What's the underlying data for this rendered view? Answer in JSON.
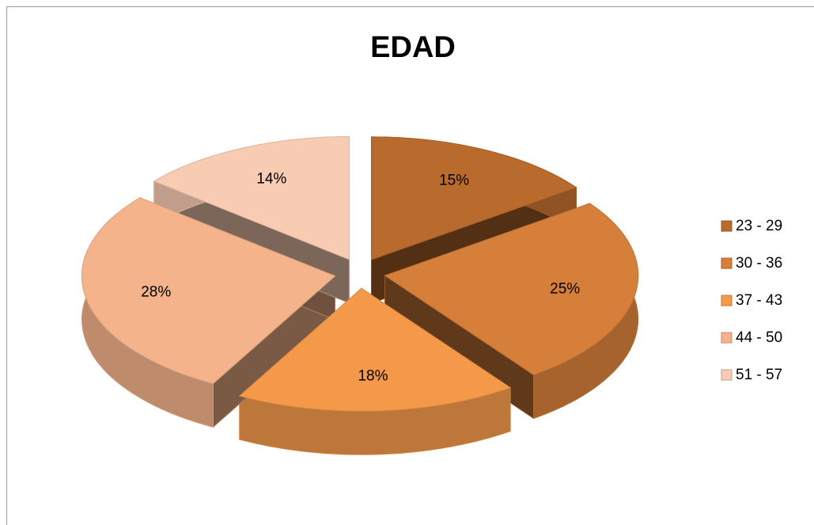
{
  "chart_data": {
    "type": "pie",
    "title": "EDAD",
    "categories": [
      "23 - 29",
      "30 - 36",
      "37 - 43",
      "44 - 50",
      "51 - 57"
    ],
    "values": [
      15,
      25,
      18,
      28,
      14
    ],
    "value_labels": [
      "15%",
      "25%",
      "18%",
      "28%",
      "14%"
    ],
    "colors": [
      "#b96a2d",
      "#d67f3a",
      "#f4994a",
      "#f4b38a",
      "#f8cbb3"
    ],
    "legend": "right"
  }
}
